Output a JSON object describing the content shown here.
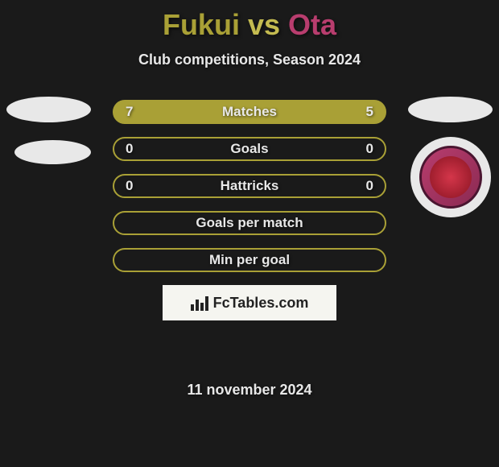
{
  "title": {
    "player1": "Fukui",
    "vs": "vs",
    "player2": "Ota",
    "color1": "#a9a036",
    "color2": "#b83d6e",
    "vs_color": "#c4bb50"
  },
  "subtitle": "Club competitions, Season 2024",
  "bars": [
    {
      "label": "Matches",
      "left": "7",
      "right": "5",
      "fill_color": "#a9a036",
      "border_color": "#a9a036",
      "fill_left": 0,
      "fill_right": 0.42
    },
    {
      "label": "Goals",
      "left": "0",
      "right": "0",
      "fill_color": "#a9a036",
      "border_color": "#a9a036",
      "fill_left": 0,
      "fill_right": 0
    },
    {
      "label": "Hattricks",
      "left": "0",
      "right": "0",
      "fill_color": "#a9a036",
      "border_color": "#a9a036",
      "fill_left": 0,
      "fill_right": 0
    },
    {
      "label": "Goals per match",
      "left": "",
      "right": "",
      "fill_color": "#a9a036",
      "border_color": "#a9a036",
      "fill_left": 0,
      "fill_right": 0
    },
    {
      "label": "Min per goal",
      "left": "",
      "right": "",
      "fill_color": "#a9a036",
      "border_color": "#a9a036",
      "fill_left": 0,
      "fill_right": 0
    }
  ],
  "bar_style": {
    "height": 30,
    "spacing": 16,
    "border_radius": 15,
    "border_width": 2
  },
  "watermark": "FcTables.com",
  "date": "11 november 2024",
  "colors": {
    "background": "#1a1a1a",
    "text": "#e8e8e8",
    "badge_ellipse": "#e8e8e8",
    "club_outer": "#b83d6e",
    "club_border": "#4a1530",
    "club_center": "#d4364a"
  }
}
